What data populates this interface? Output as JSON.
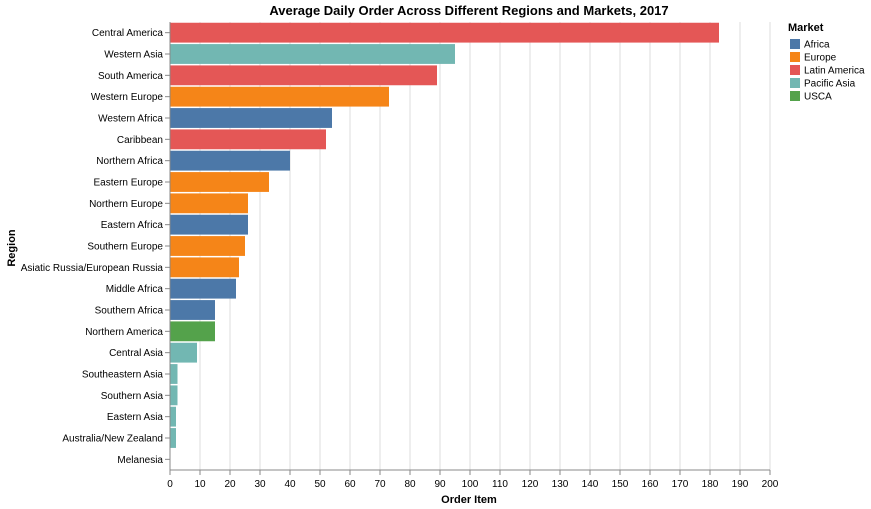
{
  "chart_data": {
    "type": "bar",
    "orientation": "horizontal",
    "title": "Average Daily Order Across Different Regions and Markets, 2017",
    "xlabel": "Order Item",
    "ylabel": "Region",
    "xlim": [
      0,
      200
    ],
    "xticks": [
      0,
      10,
      20,
      30,
      40,
      50,
      60,
      70,
      80,
      90,
      100,
      110,
      120,
      130,
      140,
      150,
      160,
      170,
      180,
      190,
      200
    ],
    "grid": true,
    "legend": {
      "title": "Market",
      "placement": "top-right",
      "items": [
        {
          "name": "Africa",
          "color": "#4c78a8"
        },
        {
          "name": "Europe",
          "color": "#f58518"
        },
        {
          "name": "Latin America",
          "color": "#e45756"
        },
        {
          "name": "Pacific Asia",
          "color": "#72b7b2"
        },
        {
          "name": "USCA",
          "color": "#54a24b"
        }
      ]
    },
    "categories": [
      "Central America",
      "Western Asia",
      "South America",
      "Western Europe",
      "Western Africa",
      "Caribbean",
      "Northern Africa",
      "Eastern Europe",
      "Northern Europe",
      "Eastern Africa",
      "Southern Europe",
      "Asiatic Russia/European Russia",
      "Middle Africa",
      "Southern Africa",
      "Northern America",
      "Central Asia",
      "Southeastern Asia",
      "Southern Asia",
      "Eastern Asia",
      "Australia/New Zealand",
      "Melanesia"
    ],
    "values": [
      183,
      95,
      89,
      73,
      54,
      52,
      40,
      33,
      26,
      26,
      25,
      23,
      22,
      15,
      15,
      9,
      2.5,
      2.5,
      2,
      2,
      0
    ],
    "markets": [
      "Latin America",
      "Pacific Asia",
      "Latin America",
      "Europe",
      "Africa",
      "Latin America",
      "Africa",
      "Europe",
      "Europe",
      "Africa",
      "Europe",
      "Europe",
      "Africa",
      "Africa",
      "USCA",
      "Pacific Asia",
      "Pacific Asia",
      "Pacific Asia",
      "Pacific Asia",
      "Pacific Asia",
      "Pacific Asia"
    ]
  }
}
